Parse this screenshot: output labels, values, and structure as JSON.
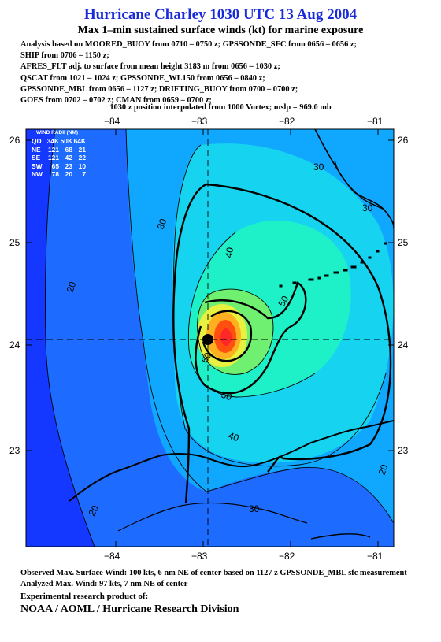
{
  "header": {
    "title": "Hurricane Charley 1030 UTC 13 Aug 2004",
    "subtitle": "Max 1–min sustained surface winds (kt) for marine exposure",
    "analysis_lines": [
      "Analysis based on  MOORED_BUOY from 0710 – 0750 z;  GPSSONDE_SFC from 0656 – 0656 z;",
      "SHIP from 0706 – 1150 z;",
      "AFRES_FLT adj. to surface from mean height 3183 m from 0656 – 1030 z;",
      "QSCAT from 1021 – 1024 z;  GPSSONDE_WL150 from 0656 – 0840 z;",
      "GPSSONDE_MBL from 0656 – 1127 z;  DRIFTING_BUOY from 0700 – 0700 z;",
      "GOES from 0702 – 0702 z;  CMAN from 0659 – 0700 z;"
    ],
    "position_line": "1030 z position interpolated from 1000 Vortex; mslp = 969.0 mb"
  },
  "map": {
    "lon_ticks": [
      "−84",
      "−83",
      "−82",
      "−81"
    ],
    "lat_ticks": [
      "26",
      "25",
      "24",
      "23"
    ],
    "lon_range": [
      -84.8,
      -80.8
    ],
    "lat_range": [
      22.1,
      26.2
    ],
    "center": {
      "lon": -82.85,
      "lat": 24.1
    },
    "contour_labels": [
      "30",
      "30",
      "20",
      "40",
      "50",
      "50",
      "40",
      "30",
      "20",
      "20",
      "30",
      "60"
    ],
    "colors": {
      "background": "#1438ff",
      "band_20": "#1e6cff",
      "band_30": "#10a8ff",
      "band_40": "#16d4f0",
      "band_50": "#1ef0c8",
      "band_60": "#70f070",
      "core_70": "#e8f040",
      "core_80": "#ffb020",
      "core_90": "#ff5010",
      "core_max": "#ff2828",
      "land": "#000000"
    }
  },
  "wind_radii": {
    "title": "WIND RADII (NM)",
    "header": [
      "QD",
      "34K",
      "50K",
      "64K"
    ],
    "rows": [
      [
        "NE",
        "121",
        "68",
        "21"
      ],
      [
        "SE",
        "121",
        "42",
        "22"
      ],
      [
        "SW",
        "65",
        "23",
        "10"
      ],
      [
        "NW",
        "78",
        "20",
        "7"
      ]
    ]
  },
  "footer": {
    "observed": "Observed Max. Surface Wind: 100 kts, 6 nm NE of center based on 1127 z GPSSONDE_MBL sfc measurement",
    "analyzed": "Analyzed Max. Wind: 97 kts, 7 nm NE of center",
    "research": "Experimental research product of:",
    "org": "NOAA / AOML / Hurricane Research Division"
  }
}
